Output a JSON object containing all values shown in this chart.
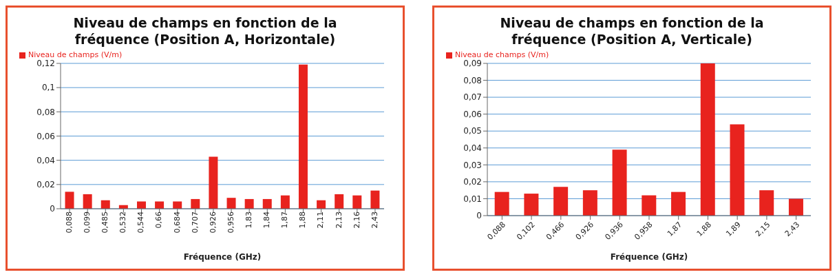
{
  "chart_data": [
    {
      "type": "bar",
      "title": "Niveau de champs en fonction de la fréquence (Position A, Horizontale)",
      "xlabel": "Fréquence (GHz)",
      "categories": [
        "0,088",
        "0,099",
        "0,485",
        "0,532",
        "0,544",
        "0,66",
        "0,684",
        "0,707",
        "0,926",
        "0,956",
        "1,83",
        "1,84",
        "1,87",
        "1,88",
        "2,11",
        "2,13",
        "2,16",
        "2,43"
      ],
      "series": [
        {
          "name": "Niveau de champs (V/m)",
          "color": "#e8231e",
          "values": [
            0.014,
            0.012,
            0.007,
            0.003,
            0.006,
            0.006,
            0.006,
            0.008,
            0.043,
            0.009,
            0.008,
            0.008,
            0.011,
            0.119,
            0.007,
            0.012,
            0.011,
            0.015
          ]
        }
      ],
      "ylim": [
        0,
        0.12
      ],
      "yticks": [
        {
          "value": 0,
          "label": "0"
        },
        {
          "value": 0.02,
          "label": "0,02"
        },
        {
          "value": 0.04,
          "label": "0,04"
        },
        {
          "value": 0.06,
          "label": "0,06"
        },
        {
          "value": 0.08,
          "label": "0,08"
        },
        {
          "value": 0.1,
          "label": "0,1"
        },
        {
          "value": 0.12,
          "label": "0,12"
        }
      ],
      "grid": "y",
      "legend": "top left"
    },
    {
      "type": "bar",
      "title": "Niveau de champs en fonction de la fréquence (Position A, Verticale)",
      "xlabel": "Fréquence (GHz)",
      "categories": [
        "0,088",
        "0,102",
        "0,466",
        "0,926",
        "0,936",
        "0,958",
        "1,87",
        "1,88",
        "1,89",
        "2,15",
        "2,43"
      ],
      "series": [
        {
          "name": "Niveau de champs (V/m)",
          "color": "#e8231e",
          "values": [
            0.014,
            0.013,
            0.017,
            0.015,
            0.039,
            0.012,
            0.014,
            0.09,
            0.054,
            0.015,
            0.01
          ]
        }
      ],
      "ylim": [
        0,
        0.09
      ],
      "yticks": [
        {
          "value": 0,
          "label": "0"
        },
        {
          "value": 0.01,
          "label": "0,01"
        },
        {
          "value": 0.02,
          "label": "0,02"
        },
        {
          "value": 0.03,
          "label": "0,03"
        },
        {
          "value": 0.04,
          "label": "0,04"
        },
        {
          "value": 0.05,
          "label": "0,05"
        },
        {
          "value": 0.06,
          "label": "0,06"
        },
        {
          "value": 0.07,
          "label": "0,07"
        },
        {
          "value": 0.08,
          "label": "0,08"
        },
        {
          "value": 0.09,
          "label": "0,09"
        }
      ],
      "grid": "y",
      "legend": "top left"
    }
  ]
}
